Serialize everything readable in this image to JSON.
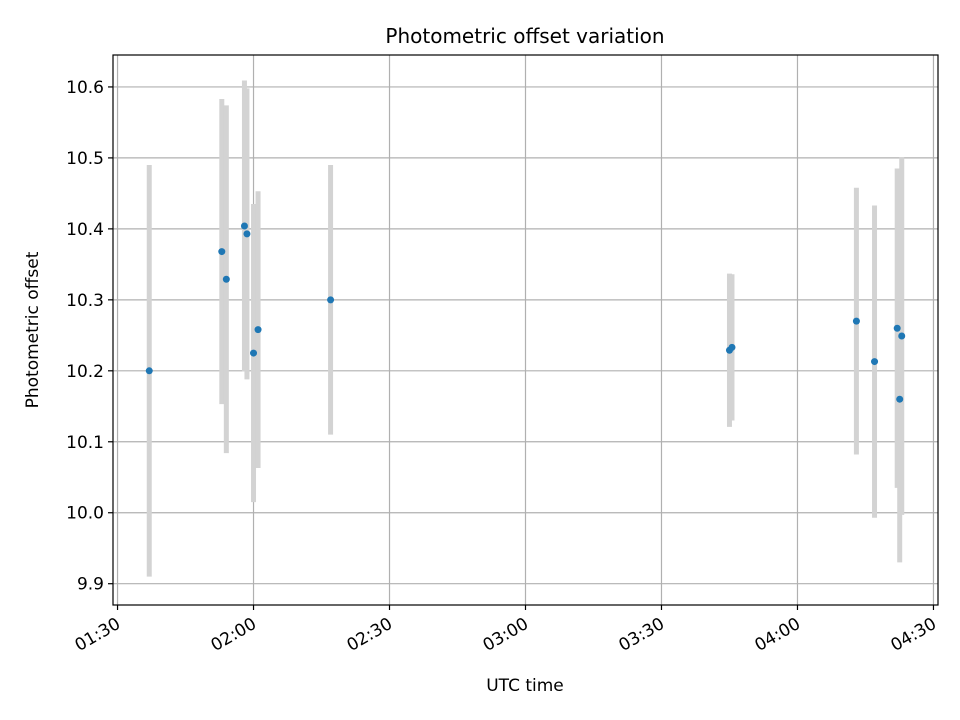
{
  "chart_data": {
    "type": "scatter",
    "title": "Photometric offset variation",
    "xlabel": "UTC time",
    "ylabel": "Photometric offset",
    "x_ticks": [
      "01:30",
      "02:00",
      "02:30",
      "03:00",
      "03:30",
      "04:00",
      "04:30"
    ],
    "y_ticks": [
      "9.9",
      "10.0",
      "10.1",
      "10.2",
      "10.3",
      "10.4",
      "10.5",
      "10.6"
    ],
    "xlim": [
      "01:29",
      "04:31"
    ],
    "ylim": [
      9.87,
      10.645
    ],
    "grid": true,
    "marker_color": "#1f77b4",
    "errorbar_color": "#d3d3d3",
    "points": [
      {
        "x": "01:37",
        "y": 10.2,
        "err": 0.29
      },
      {
        "x": "01:53",
        "y": 10.368,
        "err": 0.215
      },
      {
        "x": "01:54",
        "y": 10.329,
        "err": 0.245
      },
      {
        "x": "01:58",
        "y": 10.404,
        "err": 0.205
      },
      {
        "x": "01:58",
        "y": 10.393,
        "err": 0.205
      },
      {
        "x": "02:00",
        "y": 10.225,
        "err": 0.21
      },
      {
        "x": "02:01",
        "y": 10.258,
        "err": 0.195
      },
      {
        "x": "02:17",
        "y": 10.3,
        "err": 0.19
      },
      {
        "x": "03:45",
        "y": 10.229,
        "err": 0.108
      },
      {
        "x": "03:45",
        "y": 10.233,
        "err": 0.103
      },
      {
        "x": "04:13",
        "y": 10.27,
        "err": 0.188
      },
      {
        "x": "04:17",
        "y": 10.213,
        "err": 0.22
      },
      {
        "x": "04:22",
        "y": 10.26,
        "err": 0.225
      },
      {
        "x": "04:22",
        "y": 10.16,
        "err": 0.23
      },
      {
        "x": "04:23",
        "y": 10.249,
        "err": 0.252
      }
    ]
  }
}
